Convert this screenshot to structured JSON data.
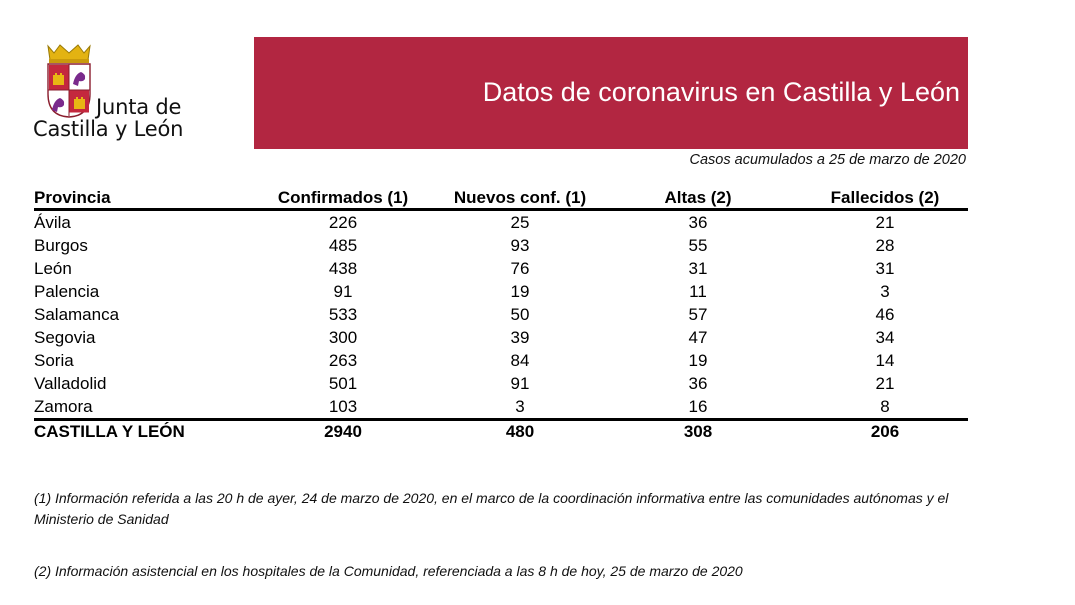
{
  "logo": {
    "line1": "Junta de",
    "line2": "Castilla y León"
  },
  "banner": {
    "title": "Datos de coronavirus en Castilla y León",
    "color": "#b22641"
  },
  "subtitle": "Casos acumulados a 25 de marzo de 2020",
  "table": {
    "headers": [
      "Provincia",
      "Confirmados (1)",
      "Nuevos conf. (1)",
      "Altas (2)",
      "Fallecidos (2)"
    ],
    "rows": [
      [
        "Ávila",
        "226",
        "25",
        "36",
        "21"
      ],
      [
        "Burgos",
        "485",
        "93",
        "55",
        "28"
      ],
      [
        "León",
        "438",
        "76",
        "31",
        "31"
      ],
      [
        "Palencia",
        "91",
        "19",
        "11",
        "3"
      ],
      [
        "Salamanca",
        "533",
        "50",
        "57",
        "46"
      ],
      [
        "Segovia",
        "300",
        "39",
        "47",
        "34"
      ],
      [
        "Soria",
        "263",
        "84",
        "19",
        "14"
      ],
      [
        "Valladolid",
        "501",
        "91",
        "36",
        "21"
      ],
      [
        "Zamora",
        "103",
        "3",
        "16",
        "8"
      ]
    ],
    "total": [
      "CASTILLA Y LEÓN",
      "2940",
      "480",
      "308",
      "206"
    ]
  },
  "notes": [
    "(1) Información referida a las 20 h de ayer, 24 de marzo de 2020, en el marco de la coordinación informativa entre las comunidades autónomas y el Ministerio de Sanidad",
    "(2) Información asistencial en los hospitales de la Comunidad, referenciada a las 8 h de hoy, 25 de marzo de 2020"
  ]
}
